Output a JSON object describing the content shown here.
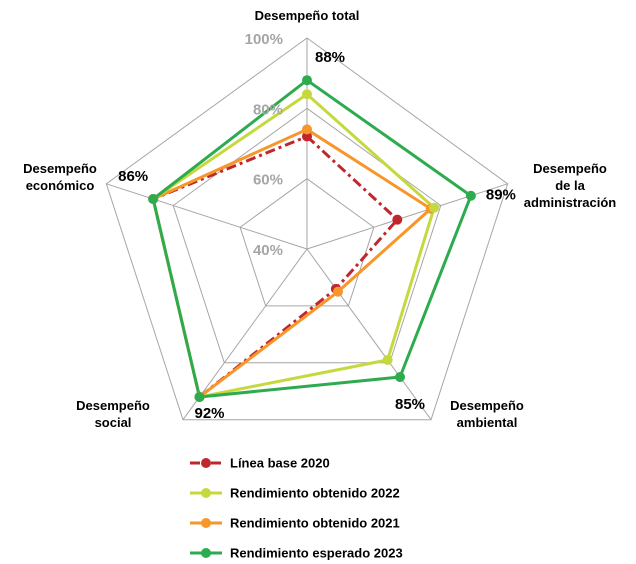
{
  "chart_data": {
    "type": "radar",
    "categories": [
      "Desempeño total",
      "Desempeño\nde la\nadministración",
      "Desempeño\nambiental",
      "Desempeño\nsocial",
      "Desempeño\neconómico"
    ],
    "rlim": [
      40,
      100
    ],
    "rticks": [
      {
        "value": 40,
        "label": "40%"
      },
      {
        "value": 60,
        "label": "60%"
      },
      {
        "value": 80,
        "label": "80%"
      },
      {
        "value": 100,
        "label": "100%"
      }
    ],
    "grid": true,
    "series": [
      {
        "name": "Línea base 2020",
        "color": "#c0272d",
        "line_style": "dash-dot",
        "values": [
          72,
          67,
          54,
          92,
          86
        ]
      },
      {
        "name": "Rendimiento obtenido 2022",
        "color": "#c5d93f",
        "line_style": "solid",
        "values": [
          84,
          78,
          79,
          92,
          86
        ]
      },
      {
        "name": "Rendimiento obtenido 2021",
        "color": "#f7962a",
        "line_style": "solid",
        "values": [
          74,
          77,
          55,
          92,
          86
        ]
      },
      {
        "name": "Rendimiento esperado 2023",
        "color": "#2eaa4f",
        "line_style": "solid",
        "values": [
          88,
          89,
          85,
          92,
          86
        ],
        "value_labels": [
          "88%",
          "89%",
          "85%",
          "92%",
          "86%"
        ]
      }
    ]
  }
}
